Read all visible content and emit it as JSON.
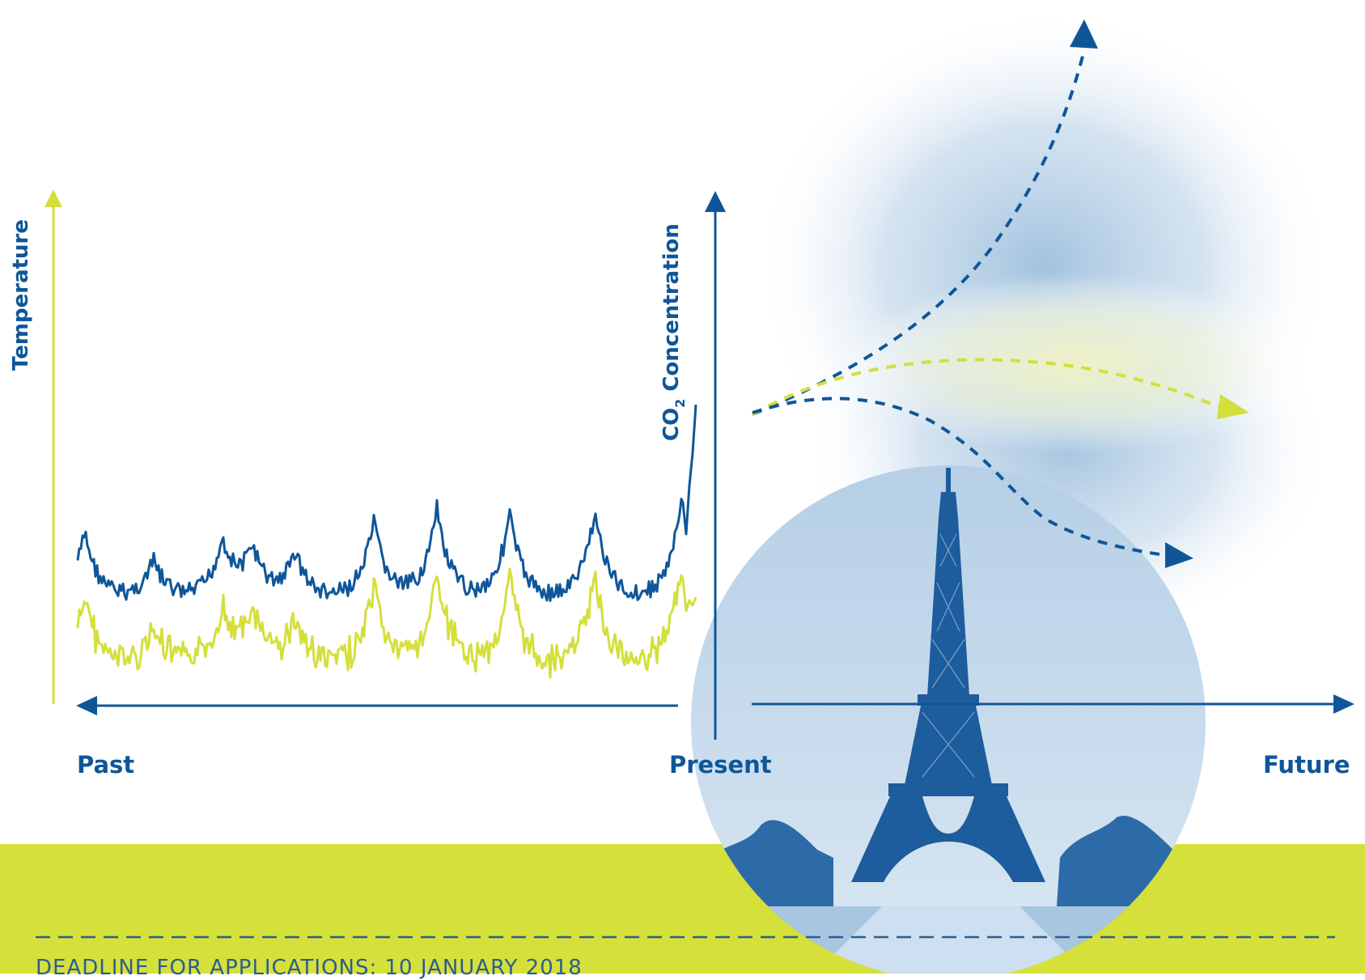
{
  "labels": {
    "temperature": "Temperature",
    "co2": "CO",
    "co2_sub": "2",
    "co2_rest": " Concentration",
    "past": "Past",
    "present": "Present",
    "future": "Future"
  },
  "footer": {
    "deadline": "DEADLINE FOR APPLICATIONS: 10 JANUARY 2018"
  },
  "colors": {
    "blue": "#0f5699",
    "lime": "#d4df3c",
    "band": "#d6e03b",
    "haze_blue": "#9dbfdc",
    "photo_tint": "#8fb6d8"
  },
  "icons": [
    "eiffel-tower-photo"
  ]
}
